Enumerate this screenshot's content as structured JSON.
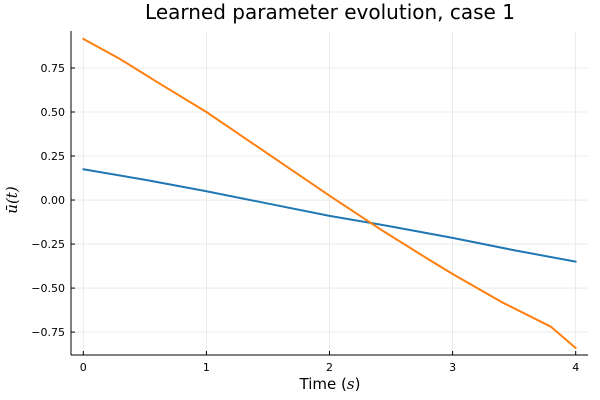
{
  "chart_data": {
    "type": "line",
    "title": "Learned parameter evolution, case 1",
    "xlabel_text": "Time (",
    "xlabel_math": "s",
    "xlabel_close": ")",
    "ylabel": "ū(t)",
    "xlim": [
      -0.1,
      4.1
    ],
    "ylim": [
      -0.88,
      0.96
    ],
    "x_ticks": [
      0,
      1,
      2,
      3,
      4
    ],
    "x_tick_labels": [
      "0",
      "1",
      "2",
      "3",
      "4"
    ],
    "y_ticks": [
      -0.75,
      -0.5,
      -0.25,
      0.0,
      0.25,
      0.5,
      0.75
    ],
    "y_tick_labels": [
      "−0.75",
      "−0.50",
      "−0.25",
      "0.00",
      "0.25",
      "0.50",
      "0.75"
    ],
    "grid": true,
    "legend": "none",
    "series": [
      {
        "color": "#1f77b4",
        "x": [
          0,
          0.5,
          1,
          1.5,
          2,
          2.5,
          3,
          3.5,
          4
        ],
        "y": [
          0.175,
          0.115,
          0.05,
          -0.02,
          -0.09,
          -0.15,
          -0.215,
          -0.285,
          -0.35
        ]
      },
      {
        "color": "#ff7f0e",
        "x": [
          0,
          0.3,
          0.6,
          1,
          1.4,
          1.8,
          2,
          2.4,
          2.8,
          3,
          3.4,
          3.8,
          4
        ],
        "y": [
          0.915,
          0.8,
          0.67,
          0.5,
          0.31,
          0.12,
          0.025,
          -0.16,
          -0.335,
          -0.42,
          -0.58,
          -0.72,
          -0.84
        ]
      }
    ]
  }
}
